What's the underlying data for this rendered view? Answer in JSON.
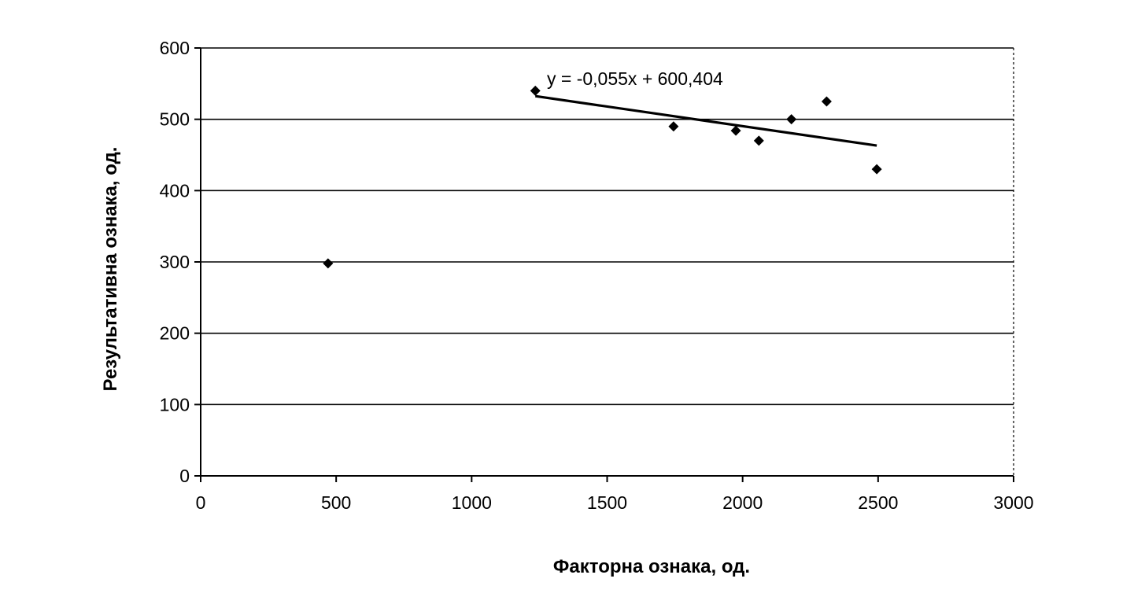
{
  "chart_data": {
    "type": "scatter",
    "title": "",
    "xlabel": "Факторна ознака, од.",
    "ylabel": "Результативна ознака, од.",
    "xlim": [
      0,
      3000
    ],
    "ylim": [
      0,
      600
    ],
    "x_ticks": [
      0,
      500,
      1000,
      1500,
      2000,
      2500,
      3000
    ],
    "y_ticks": [
      0,
      100,
      200,
      300,
      400,
      500,
      600
    ],
    "grid": "horizontal",
    "points": [
      {
        "x": 470,
        "y": 298
      },
      {
        "x": 1235,
        "y": 540
      },
      {
        "x": 1745,
        "y": 490
      },
      {
        "x": 1975,
        "y": 484
      },
      {
        "x": 2060,
        "y": 470
      },
      {
        "x": 2180,
        "y": 500
      },
      {
        "x": 2310,
        "y": 525
      },
      {
        "x": 2495,
        "y": 430
      }
    ],
    "trendline": {
      "slope": -0.055,
      "intercept": 600.404,
      "x_range": [
        1235,
        2495
      ],
      "equation_label": "y = -0,055x + 600,404"
    },
    "colors": {
      "axis": "#000000",
      "grid": "#000000",
      "marker": "#000000",
      "trendline": "#000000",
      "text": "#000000"
    }
  }
}
